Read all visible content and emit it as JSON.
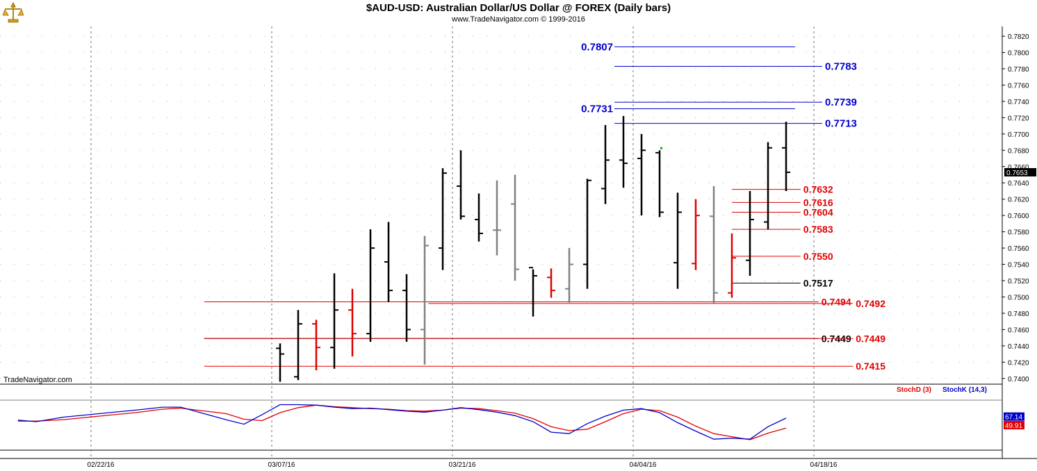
{
  "header": {
    "title": "$AUD-USD:  Australian Dollar/US Dollar @ FOREX  (Daily bars)",
    "subtitle": "www.TradeNavigator.com © 1999-2016"
  },
  "watermark": "TradeNavigator.com",
  "colors": {
    "up_bar": "#000000",
    "red_bar": "#e00000",
    "gray_bar": "#808080",
    "blue": "#0000cc",
    "red": "#e00000",
    "green": "#00b000"
  },
  "icons": {
    "logo": "gold-scale-logo-icon"
  },
  "chart_data": {
    "type": "ohlc",
    "price_axis": {
      "ticks": [
        "0.7820",
        "0.7800",
        "0.7780",
        "0.7760",
        "0.7740",
        "0.7720",
        "0.7700",
        "0.7680",
        "0.7660",
        "0.7640",
        "0.7620",
        "0.7600",
        "0.7580",
        "0.7560",
        "0.7540",
        "0.7520",
        "0.7500",
        "0.7480",
        "0.7460",
        "0.7440",
        "0.7420",
        "0.7400"
      ],
      "range": [
        0.7393,
        0.7832
      ],
      "last_price": "0.7653"
    },
    "date_axis": {
      "labels": [
        "02/22/16",
        "03/07/16",
        "03/21/16",
        "04/04/16",
        "04/18/16"
      ],
      "label_bar_index": [
        -10,
        0,
        10,
        20,
        30
      ]
    },
    "bars": [
      {
        "o": 0.7437,
        "h": 0.7443,
        "l": 0.7396,
        "c": 0.743,
        "color": "black"
      },
      {
        "o": 0.7402,
        "h": 0.7484,
        "l": 0.7398,
        "c": 0.7467,
        "color": "black"
      },
      {
        "o": 0.7467,
        "h": 0.7472,
        "l": 0.741,
        "c": 0.7438,
        "color": "red"
      },
      {
        "o": 0.7438,
        "h": 0.7529,
        "l": 0.7412,
        "c": 0.7484,
        "color": "black"
      },
      {
        "o": 0.7484,
        "h": 0.751,
        "l": 0.7427,
        "c": 0.7455,
        "color": "red"
      },
      {
        "o": 0.7455,
        "h": 0.7583,
        "l": 0.7445,
        "c": 0.756,
        "color": "black"
      },
      {
        "o": 0.7543,
        "h": 0.7592,
        "l": 0.7494,
        "c": 0.7508,
        "color": "black"
      },
      {
        "o": 0.7508,
        "h": 0.7528,
        "l": 0.7445,
        "c": 0.746,
        "color": "black"
      },
      {
        "o": 0.746,
        "h": 0.7575,
        "l": 0.7417,
        "c": 0.7563,
        "color": "gray"
      },
      {
        "o": 0.756,
        "h": 0.7658,
        "l": 0.7533,
        "c": 0.7652,
        "color": "black"
      },
      {
        "o": 0.7636,
        "h": 0.768,
        "l": 0.7595,
        "c": 0.7599,
        "color": "black"
      },
      {
        "o": 0.7595,
        "h": 0.7627,
        "l": 0.7568,
        "c": 0.7578,
        "color": "black"
      },
      {
        "o": 0.7582,
        "h": 0.7643,
        "l": 0.7551,
        "c": 0.7582,
        "color": "gray"
      },
      {
        "o": 0.7614,
        "h": 0.765,
        "l": 0.752,
        "c": 0.7534,
        "color": "gray"
      },
      {
        "o": 0.7536,
        "h": 0.7534,
        "l": 0.7476,
        "c": 0.7526,
        "color": "black"
      },
      {
        "o": 0.7524,
        "h": 0.7535,
        "l": 0.7499,
        "c": 0.7508,
        "color": "red"
      },
      {
        "o": 0.751,
        "h": 0.756,
        "l": 0.7493,
        "c": 0.754,
        "color": "gray"
      },
      {
        "o": 0.754,
        "h": 0.7645,
        "l": 0.751,
        "c": 0.7643,
        "color": "black"
      },
      {
        "o": 0.7633,
        "h": 0.7711,
        "l": 0.7614,
        "c": 0.7668,
        "color": "black"
      },
      {
        "o": 0.7668,
        "h": 0.7722,
        "l": 0.7634,
        "c": 0.7664,
        "color": "black"
      },
      {
        "o": 0.767,
        "h": 0.77,
        "l": 0.76,
        "c": 0.768,
        "color": "black"
      },
      {
        "o": 0.7677,
        "h": 0.768,
        "l": 0.7598,
        "c": 0.7604,
        "color": "black"
      },
      {
        "o": 0.7542,
        "h": 0.7628,
        "l": 0.751,
        "c": 0.7604,
        "color": "black"
      },
      {
        "o": 0.7541,
        "h": 0.762,
        "l": 0.7533,
        "c": 0.76,
        "color": "red"
      },
      {
        "o": 0.7599,
        "h": 0.7636,
        "l": 0.7492,
        "c": 0.7505,
        "color": "gray"
      },
      {
        "o": 0.7505,
        "h": 0.7578,
        "l": 0.7499,
        "c": 0.7548,
        "color": "red"
      },
      {
        "o": 0.7545,
        "h": 0.763,
        "l": 0.7526,
        "c": 0.7595,
        "color": "black"
      },
      {
        "o": 0.7592,
        "h": 0.769,
        "l": 0.7583,
        "c": 0.7683,
        "color": "black"
      },
      {
        "o": 0.7683,
        "h": 0.7715,
        "l": 0.763,
        "c": 0.7653,
        "color": "black"
      }
    ],
    "levels": [
      {
        "price": 0.7807,
        "label": "0.7807",
        "color": "blue",
        "from": 18.5,
        "to": 28.5,
        "label_side": "left"
      },
      {
        "price": 0.7783,
        "label": "0.7783",
        "color": "blue",
        "from": 18.5,
        "to": 30,
        "label_side": "right"
      },
      {
        "price": 0.7739,
        "label": "0.7739",
        "color": "blue",
        "from": 18.5,
        "to": 30,
        "label_side": "right"
      },
      {
        "price": 0.7731,
        "label": "0.7731",
        "color": "blue",
        "from": 18.5,
        "to": 28.5,
        "label_side": "left"
      },
      {
        "price": 0.7713,
        "label": "0.7713",
        "color": "blue",
        "from": 18.5,
        "to": 30,
        "label_side": "right"
      },
      {
        "price": 0.7632,
        "label": "0.7632",
        "color": "red",
        "from": 25,
        "to": 28.8,
        "label_side": "right"
      },
      {
        "price": 0.7616,
        "label": "0.7616",
        "color": "red",
        "from": 25,
        "to": 28.8,
        "label_side": "right"
      },
      {
        "price": 0.7604,
        "label": "0.7604",
        "color": "red",
        "from": 25,
        "to": 28.8,
        "label_side": "right"
      },
      {
        "price": 0.7583,
        "label": "0.7583",
        "color": "red",
        "from": 25,
        "to": 28.8,
        "label_side": "right"
      },
      {
        "price": 0.755,
        "label": "0.7550",
        "color": "red",
        "from": 25,
        "to": 28.8,
        "label_side": "right"
      },
      {
        "price": 0.7517,
        "label": "0.7517",
        "color": "black",
        "from": 25,
        "to": 28.8,
        "label_side": "right"
      },
      {
        "price": 0.7494,
        "label": "0.7494",
        "color": "red",
        "from": -4.2,
        "to": 29.8,
        "label_side": "right"
      },
      {
        "price": 0.7492,
        "label": "0.7492",
        "color": "red",
        "from": 8.2,
        "to": 31.7,
        "label_side": "right"
      },
      {
        "price": 0.7449,
        "label": "0.7449",
        "color": "black",
        "from": -4.2,
        "to": 29.8,
        "label_side": "right"
      },
      {
        "price": 0.7449,
        "label": "0.7449",
        "color": "red",
        "from": -4.2,
        "to": 31.7,
        "label_side": "right"
      },
      {
        "price": 0.7415,
        "label": "0.7415",
        "color": "red",
        "from": -4.2,
        "to": 31.7,
        "label_side": "right"
      }
    ],
    "stochastic": {
      "range": [
        0,
        100
      ],
      "legend_d": "StochD (3)",
      "legend_k": "StochK (14,3)",
      "k_value": "67.14",
      "d_value": "49.91",
      "k": [
        [
          -14.5,
          60
        ],
        [
          -13.5,
          57
        ],
        [
          -12,
          66
        ],
        [
          -10,
          73
        ],
        [
          -8,
          80
        ],
        [
          -6.5,
          86
        ],
        [
          -5.5,
          86
        ],
        [
          -3,
          61
        ],
        [
          -2,
          52
        ],
        [
          -1,
          71
        ],
        [
          0,
          91
        ],
        [
          0.5,
          91
        ],
        [
          1,
          91
        ],
        [
          2,
          90
        ],
        [
          3,
          86
        ],
        [
          4,
          83
        ],
        [
          5,
          84
        ],
        [
          6,
          81
        ],
        [
          7,
          78
        ],
        [
          8,
          76
        ],
        [
          9,
          80
        ],
        [
          10,
          85
        ],
        [
          11,
          81
        ],
        [
          12,
          76
        ],
        [
          13,
          69
        ],
        [
          14,
          57
        ],
        [
          15,
          36
        ],
        [
          16,
          33
        ],
        [
          17,
          53
        ],
        [
          18,
          68
        ],
        [
          19,
          80
        ],
        [
          20,
          83
        ],
        [
          21,
          75
        ],
        [
          22,
          55
        ],
        [
          23,
          38
        ],
        [
          24,
          22
        ],
        [
          25,
          24
        ],
        [
          26,
          22
        ],
        [
          27,
          47
        ],
        [
          28,
          64
        ]
      ],
      "d": [
        [
          -14.5,
          58
        ],
        [
          -13.5,
          58
        ],
        [
          -12,
          61
        ],
        [
          -10,
          68
        ],
        [
          -8,
          75
        ],
        [
          -6.5,
          82
        ],
        [
          -5.5,
          84
        ],
        [
          -3,
          73
        ],
        [
          -2,
          62
        ],
        [
          -1,
          59
        ],
        [
          0,
          75
        ],
        [
          1,
          85
        ],
        [
          2,
          90
        ],
        [
          3,
          87
        ],
        [
          4,
          85
        ],
        [
          5,
          83
        ],
        [
          6,
          82
        ],
        [
          7,
          79
        ],
        [
          8,
          78
        ],
        [
          9,
          80
        ],
        [
          10,
          84
        ],
        [
          11,
          83
        ],
        [
          12,
          79
        ],
        [
          13,
          74
        ],
        [
          14,
          63
        ],
        [
          15,
          47
        ],
        [
          16,
          39
        ],
        [
          17,
          42
        ],
        [
          18,
          57
        ],
        [
          19,
          73
        ],
        [
          20,
          82
        ],
        [
          21,
          79
        ],
        [
          22,
          66
        ],
        [
          23,
          48
        ],
        [
          24,
          33
        ],
        [
          25,
          27
        ],
        [
          26,
          21
        ],
        [
          27,
          34
        ],
        [
          28,
          44
        ]
      ]
    }
  }
}
